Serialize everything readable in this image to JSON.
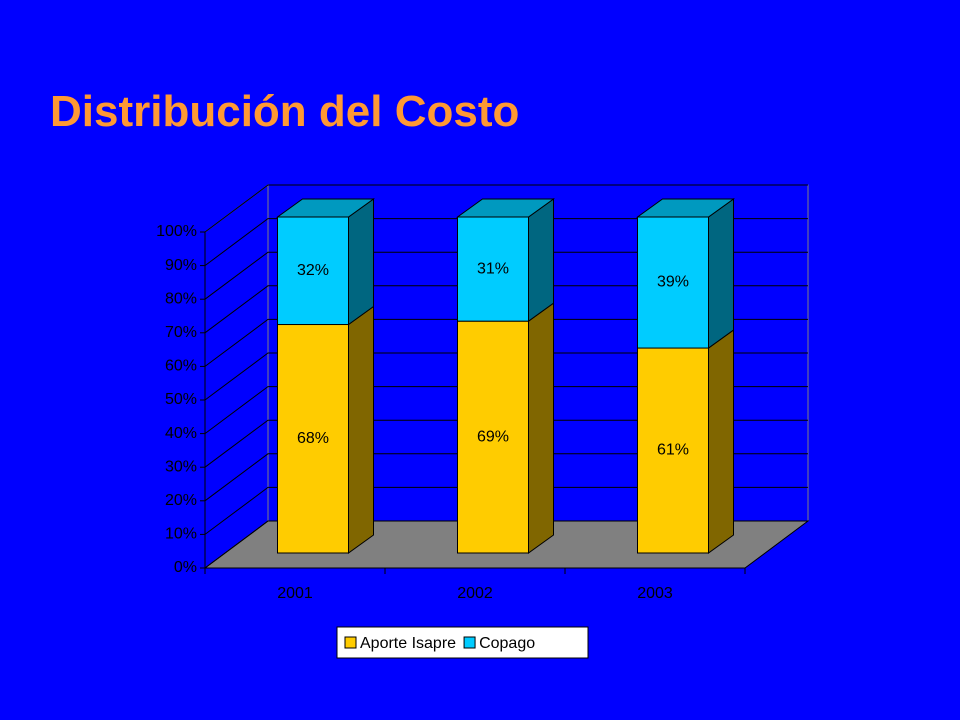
{
  "chart_data": {
    "type": "stacked-bar-3d",
    "title": "Distribución del Costo",
    "categories": [
      "2001",
      "2002",
      "2003"
    ],
    "series": [
      {
        "name": "Aporte Isapre",
        "color": "#ffcc00",
        "values": [
          68,
          69,
          61
        ],
        "value_labels": [
          "68%",
          "69%",
          "61%"
        ]
      },
      {
        "name": "Copago",
        "color": "#00ccff",
        "values": [
          32,
          31,
          39
        ],
        "value_labels": [
          "32%",
          "31%",
          "39%"
        ]
      }
    ],
    "ylim": [
      0,
      100
    ],
    "yticks": [
      {
        "value": 0,
        "label": "0%"
      },
      {
        "value": 10,
        "label": "10%"
      },
      {
        "value": 20,
        "label": "20%"
      },
      {
        "value": 30,
        "label": "30%"
      },
      {
        "value": 40,
        "label": "40%"
      },
      {
        "value": 50,
        "label": "50%"
      },
      {
        "value": 60,
        "label": "60%"
      },
      {
        "value": 70,
        "label": "70%"
      },
      {
        "value": 80,
        "label": "80%"
      },
      {
        "value": 90,
        "label": "90%"
      },
      {
        "value": 100,
        "label": "100%"
      }
    ],
    "grid": true,
    "legend": "bottom"
  }
}
